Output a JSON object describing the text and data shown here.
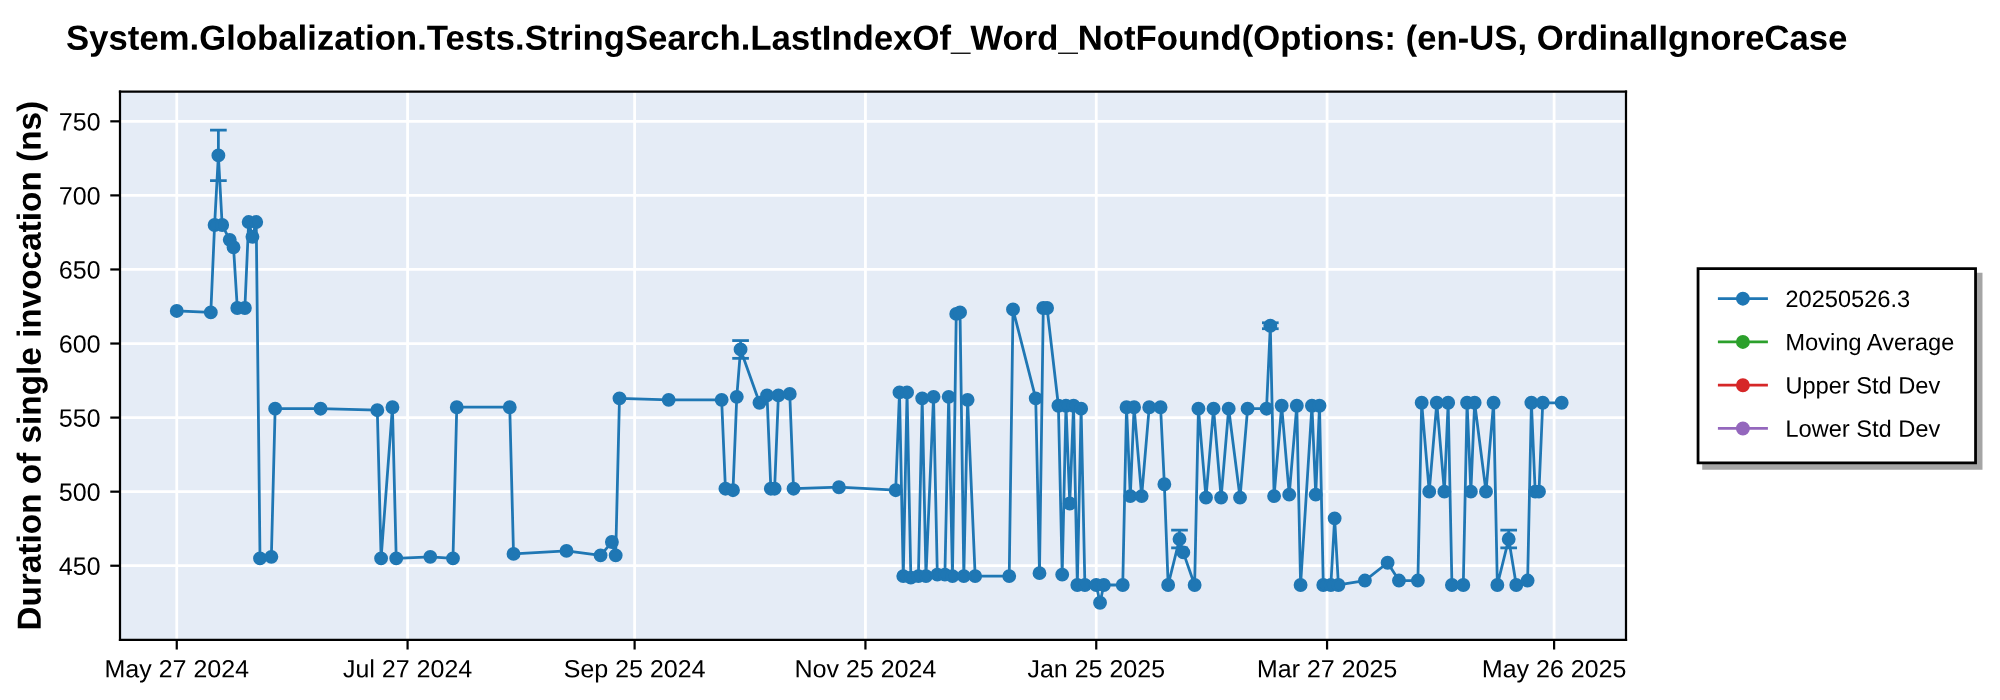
{
  "chart_data": {
    "type": "line",
    "title": "System.Globalization.Tests.StringSearch.LastIndexOf_Word_NotFound(Options: (en-US, OrdinalIgnoreCase",
    "ylabel": "Duration of single invocation (ns)",
    "xlim": [
      "2024-05-12",
      "2025-06-14"
    ],
    "xticks": [
      {
        "value": "2024-05-27",
        "label": "May 27 2024"
      },
      {
        "value": "2024-07-27",
        "label": "Jul 27 2024"
      },
      {
        "value": "2024-09-25",
        "label": "Sep 25 2024"
      },
      {
        "value": "2024-11-25",
        "label": "Nov 25 2024"
      },
      {
        "value": "2025-01-25",
        "label": "Jan 25 2025"
      },
      {
        "value": "2025-03-27",
        "label": "Mar 27 2025"
      },
      {
        "value": "2025-05-26",
        "label": "May 26 2025"
      }
    ],
    "ylim": [
      400,
      770
    ],
    "yticks": [
      450,
      500,
      550,
      600,
      650,
      700,
      750
    ],
    "grid": true,
    "legend": "right",
    "marker": "circle",
    "line_style": "solid",
    "series": [
      {
        "name": "20250526.3",
        "color": "#1f77b4",
        "x": [
          "2024-05-27",
          "2024-06-05",
          "2024-06-06",
          "2024-06-07",
          "2024-06-08",
          "2024-06-10",
          "2024-06-11",
          "2024-06-12",
          "2024-06-14",
          "2024-06-15",
          "2024-06-16",
          "2024-06-17",
          "2024-06-18",
          "2024-06-21",
          "2024-06-22",
          "2024-07-04",
          "2024-07-19",
          "2024-07-20",
          "2024-07-23",
          "2024-07-24",
          "2024-08-02",
          "2024-08-08",
          "2024-08-09",
          "2024-08-23",
          "2024-08-24",
          "2024-09-07",
          "2024-09-16",
          "2024-09-19",
          "2024-09-20",
          "2024-09-21",
          "2024-10-04",
          "2024-10-18",
          "2024-10-19",
          "2024-10-21",
          "2024-10-22",
          "2024-10-23",
          "2024-10-28",
          "2024-10-30",
          "2024-10-31",
          "2024-11-01",
          "2024-11-02",
          "2024-11-05",
          "2024-11-06",
          "2024-11-18",
          "2024-12-03",
          "2024-12-04",
          "2024-12-05",
          "2024-12-06",
          "2024-12-07",
          "2024-12-09",
          "2024-12-10",
          "2024-12-11",
          "2024-12-13",
          "2024-12-14",
          "2024-12-16",
          "2024-12-17",
          "2024-12-18",
          "2024-12-19",
          "2024-12-20",
          "2024-12-21",
          "2024-12-22",
          "2024-12-24",
          "2025-01-02",
          "2025-01-03",
          "2025-01-09",
          "2025-01-10",
          "2025-01-11",
          "2025-01-12",
          "2025-01-15",
          "2025-01-16",
          "2025-01-17",
          "2025-01-18",
          "2025-01-19",
          "2025-01-20",
          "2025-01-21",
          "2025-01-22",
          "2025-01-25",
          "2025-01-26",
          "2025-01-27",
          "2025-02-01",
          "2025-02-02",
          "2025-02-03",
          "2025-02-04",
          "2025-02-06",
          "2025-02-08",
          "2025-02-11",
          "2025-02-12",
          "2025-02-13",
          "2025-02-16",
          "2025-02-17",
          "2025-02-20",
          "2025-02-21",
          "2025-02-23",
          "2025-02-25",
          "2025-02-27",
          "2025-03-01",
          "2025-03-04",
          "2025-03-06",
          "2025-03-11",
          "2025-03-12",
          "2025-03-13",
          "2025-03-15",
          "2025-03-17",
          "2025-03-19",
          "2025-03-20",
          "2025-03-23",
          "2025-03-24",
          "2025-03-25",
          "2025-03-26",
          "2025-03-28",
          "2025-03-29",
          "2025-03-30",
          "2025-04-06",
          "2025-04-12",
          "2025-04-15",
          "2025-04-20",
          "2025-04-21",
          "2025-04-23",
          "2025-04-25",
          "2025-04-27",
          "2025-04-28",
          "2025-04-29",
          "2025-05-02",
          "2025-05-03",
          "2025-05-04",
          "2025-05-05",
          "2025-05-08",
          "2025-05-10",
          "2025-05-11",
          "2025-05-14",
          "2025-05-16",
          "2025-05-19",
          "2025-05-20",
          "2025-05-21",
          "2025-05-22",
          "2025-05-23",
          "2025-05-28"
        ],
        "values": [
          622,
          621,
          680,
          727,
          680,
          670,
          665,
          624,
          624,
          682,
          672,
          682,
          455,
          456,
          556,
          556,
          555,
          455,
          557,
          455,
          456,
          455,
          557,
          557,
          458,
          460,
          457,
          466,
          457,
          563,
          562,
          562,
          502,
          501,
          564,
          596,
          560,
          565,
          502,
          502,
          565,
          566,
          502,
          503,
          501,
          567,
          443,
          567,
          442,
          443,
          563,
          443,
          564,
          444,
          444,
          564,
          443,
          620,
          621,
          443,
          562,
          443,
          443,
          623,
          563,
          445,
          624,
          624,
          558,
          444,
          558,
          492,
          558,
          437,
          556,
          437,
          437,
          425,
          437,
          437,
          557,
          497,
          557,
          497,
          557,
          557,
          505,
          437,
          468,
          459,
          437,
          556,
          496,
          556,
          496,
          556,
          496,
          556,
          556,
          612,
          497,
          558,
          498,
          558,
          437,
          558,
          498,
          558,
          437,
          437,
          482,
          437,
          440,
          452,
          440,
          440,
          560,
          500,
          560,
          500,
          560,
          437,
          437,
          560,
          500,
          560,
          500,
          560,
          437,
          468,
          437,
          440,
          560,
          500,
          500,
          560,
          560
        ],
        "errors": [
          null,
          null,
          null,
          17,
          null,
          null,
          null,
          null,
          null,
          null,
          null,
          null,
          null,
          null,
          null,
          null,
          null,
          null,
          null,
          null,
          null,
          null,
          null,
          null,
          null,
          null,
          null,
          null,
          null,
          null,
          null,
          null,
          null,
          null,
          null,
          6,
          null,
          null,
          null,
          null,
          null,
          null,
          null,
          null,
          null,
          null,
          null,
          null,
          null,
          null,
          null,
          null,
          null,
          null,
          null,
          null,
          null,
          null,
          null,
          null,
          null,
          null,
          null,
          null,
          null,
          null,
          null,
          null,
          null,
          null,
          null,
          null,
          null,
          null,
          null,
          null,
          null,
          null,
          null,
          null,
          null,
          null,
          null,
          null,
          null,
          null,
          null,
          null,
          6,
          null,
          null,
          null,
          null,
          null,
          null,
          null,
          null,
          null,
          null,
          2,
          null,
          null,
          null,
          null,
          null,
          null,
          null,
          null,
          null,
          null,
          null,
          null,
          null,
          null,
          null,
          null,
          null,
          null,
          null,
          null,
          null,
          null,
          null,
          null,
          null,
          null,
          null,
          null,
          null,
          6,
          null,
          null,
          null,
          null,
          null,
          null,
          null
        ]
      },
      {
        "name": "Moving Average",
        "color": "#2ca02c"
      },
      {
        "name": "Upper Std Dev",
        "color": "#d62728"
      },
      {
        "name": "Lower Std Dev",
        "color": "#9467bd"
      }
    ]
  }
}
